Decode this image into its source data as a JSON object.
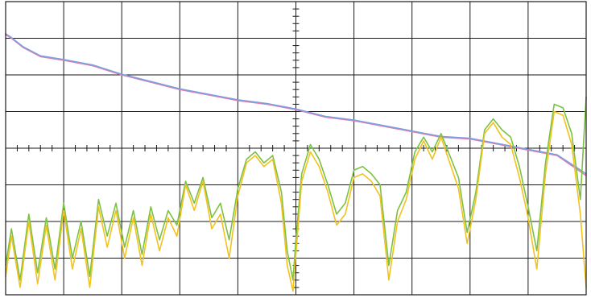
{
  "chart_data": {
    "type": "line",
    "title": "",
    "xlabel": "",
    "ylabel": "",
    "xlim": [
      0,
      10
    ],
    "ylim": [
      -4,
      4
    ],
    "divisions": {
      "x": 10,
      "y": 8
    },
    "grid": true,
    "series": [
      {
        "color": "#e87aa6",
        "x": [
          0,
          0.1,
          0.3,
          0.6,
          1.0,
          1.5,
          2.0,
          2.5,
          3.0,
          3.5,
          4.0,
          4.5,
          5.0,
          5.5,
          6.0,
          6.5,
          7.0,
          7.5,
          8.0,
          8.5,
          9.0,
          9.5,
          10.0
        ],
        "y": [
          3.1,
          3.0,
          2.75,
          2.5,
          2.4,
          2.25,
          2.0,
          1.8,
          1.6,
          1.45,
          1.3,
          1.2,
          1.05,
          0.85,
          0.75,
          0.6,
          0.45,
          0.3,
          0.25,
          0.1,
          -0.05,
          -0.2,
          -0.75
        ]
      },
      {
        "color": "#7b9fe0",
        "x": [
          0,
          0.1,
          0.3,
          0.6,
          1.0,
          1.5,
          2.0,
          2.5,
          3.0,
          3.5,
          4.0,
          4.5,
          5.0,
          5.5,
          6.0,
          6.5,
          7.0,
          7.5,
          8.0,
          8.5,
          9.0,
          9.5,
          10.0
        ],
        "y": [
          3.12,
          3.02,
          2.77,
          2.52,
          2.42,
          2.27,
          2.02,
          1.82,
          1.62,
          1.47,
          1.32,
          1.22,
          1.07,
          0.87,
          0.77,
          0.62,
          0.47,
          0.32,
          0.27,
          0.12,
          -0.03,
          -0.18,
          -0.7
        ]
      },
      {
        "color": "#7dc142",
        "x": [
          0,
          0.1,
          0.25,
          0.4,
          0.55,
          0.7,
          0.85,
          1.0,
          1.15,
          1.3,
          1.45,
          1.6,
          1.75,
          1.9,
          2.05,
          2.2,
          2.35,
          2.5,
          2.65,
          2.8,
          2.95,
          3.1,
          3.25,
          3.4,
          3.55,
          3.7,
          3.85,
          4.0,
          4.15,
          4.3,
          4.45,
          4.6,
          4.75,
          4.85,
          4.95,
          5.0,
          5.1,
          5.25,
          5.4,
          5.55,
          5.7,
          5.85,
          6.0,
          6.15,
          6.3,
          6.45,
          6.6,
          6.75,
          6.9,
          7.05,
          7.2,
          7.35,
          7.5,
          7.65,
          7.8,
          7.95,
          8.1,
          8.25,
          8.4,
          8.55,
          8.7,
          8.85,
          9.0,
          9.15,
          9.3,
          9.45,
          9.6,
          9.75,
          9.9,
          10.0
        ],
        "y": [
          -3.2,
          -2.2,
          -3.6,
          -1.8,
          -3.4,
          -1.9,
          -3.3,
          -1.5,
          -3.0,
          -2.0,
          -3.5,
          -1.4,
          -2.4,
          -1.5,
          -2.7,
          -1.7,
          -2.9,
          -1.6,
          -2.5,
          -1.7,
          -2.1,
          -0.9,
          -1.5,
          -0.8,
          -1.9,
          -1.5,
          -2.5,
          -1.1,
          -0.3,
          -0.1,
          -0.4,
          -0.2,
          -1.2,
          -2.8,
          -3.6,
          -2.5,
          -0.7,
          0.1,
          -0.3,
          -1.0,
          -1.8,
          -1.5,
          -0.6,
          -0.5,
          -0.7,
          -1.0,
          -3.2,
          -1.7,
          -1.2,
          -0.1,
          0.3,
          -0.1,
          0.4,
          -0.2,
          -0.8,
          -2.3,
          -1.2,
          0.5,
          0.8,
          0.5,
          0.3,
          -0.5,
          -1.6,
          -2.8,
          -0.4,
          1.2,
          1.1,
          0.4,
          -1.4,
          1.4
        ]
      },
      {
        "color": "#f2c21f",
        "x": [
          0,
          0.1,
          0.25,
          0.4,
          0.55,
          0.7,
          0.85,
          1.0,
          1.15,
          1.3,
          1.45,
          1.6,
          1.75,
          1.9,
          2.05,
          2.2,
          2.35,
          2.5,
          2.65,
          2.8,
          2.95,
          3.1,
          3.25,
          3.4,
          3.55,
          3.7,
          3.85,
          4.0,
          4.15,
          4.3,
          4.45,
          4.6,
          4.75,
          4.85,
          4.95,
          5.0,
          5.1,
          5.25,
          5.4,
          5.55,
          5.7,
          5.85,
          6.0,
          6.15,
          6.3,
          6.45,
          6.6,
          6.75,
          6.9,
          7.05,
          7.2,
          7.35,
          7.5,
          7.65,
          7.8,
          7.95,
          8.1,
          8.25,
          8.4,
          8.55,
          8.7,
          8.85,
          9.0,
          9.15,
          9.3,
          9.45,
          9.6,
          9.75,
          9.9,
          10.0
        ],
        "y": [
          -3.5,
          -2.4,
          -3.8,
          -2.0,
          -3.7,
          -2.1,
          -3.6,
          -1.7,
          -3.3,
          -2.2,
          -3.8,
          -1.6,
          -2.7,
          -1.7,
          -3.0,
          -1.9,
          -3.2,
          -1.8,
          -2.8,
          -1.9,
          -2.4,
          -1.0,
          -1.7,
          -0.9,
          -2.2,
          -1.8,
          -3.0,
          -1.3,
          -0.4,
          -0.2,
          -0.5,
          -0.3,
          -1.5,
          -3.2,
          -3.9,
          -2.9,
          -0.9,
          -0.1,
          -0.5,
          -1.2,
          -2.1,
          -1.8,
          -0.8,
          -0.7,
          -0.9,
          -1.3,
          -3.6,
          -2.0,
          -1.4,
          -0.3,
          0.2,
          -0.3,
          0.3,
          -0.4,
          -1.1,
          -2.6,
          -1.4,
          0.4,
          0.7,
          0.3,
          0.1,
          -0.8,
          -1.9,
          -3.3,
          -0.7,
          1.0,
          0.9,
          0.1,
          -1.8,
          -3.8
        ]
      }
    ]
  }
}
